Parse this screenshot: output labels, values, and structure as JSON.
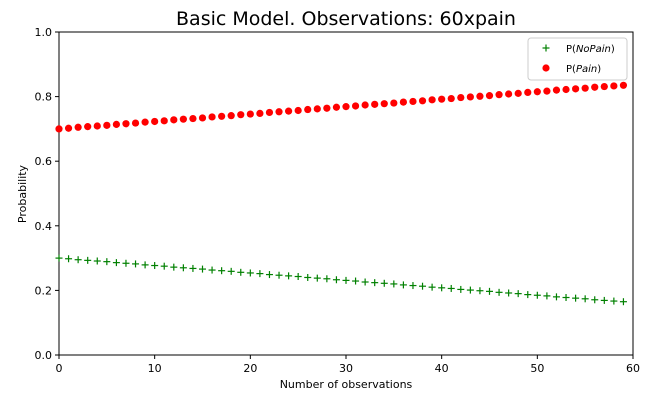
{
  "chart_data": {
    "type": "scatter",
    "title": "Basic Model. Observations: 60xpain",
    "xlabel": "Number of observations",
    "ylabel": "Probability",
    "xlim": [
      0,
      60
    ],
    "ylim": [
      0.0,
      1.0
    ],
    "xticks": [
      "0",
      "10",
      "20",
      "30",
      "40",
      "50",
      "60"
    ],
    "yticks": [
      "0.0",
      "0.2",
      "0.4",
      "0.6",
      "0.8",
      "1.0"
    ],
    "grid": false,
    "legend_position": "top-right",
    "x": [
      0,
      1,
      2,
      3,
      4,
      5,
      6,
      7,
      8,
      9,
      10,
      11,
      12,
      13,
      14,
      15,
      16,
      17,
      18,
      19,
      20,
      21,
      22,
      23,
      24,
      25,
      26,
      27,
      28,
      29,
      30,
      31,
      32,
      33,
      34,
      35,
      36,
      37,
      38,
      39,
      40,
      41,
      42,
      43,
      44,
      45,
      46,
      47,
      48,
      49,
      50,
      51,
      52,
      53,
      54,
      55,
      56,
      57,
      58,
      59
    ],
    "series": [
      {
        "name": "P(NoPain)",
        "label_parts": [
          "P(",
          "NoPain",
          ")"
        ],
        "marker": "plus",
        "color": "#008000",
        "values": [
          0.3,
          0.298,
          0.295,
          0.293,
          0.291,
          0.289,
          0.286,
          0.284,
          0.282,
          0.279,
          0.277,
          0.275,
          0.272,
          0.27,
          0.268,
          0.266,
          0.263,
          0.261,
          0.259,
          0.256,
          0.254,
          0.252,
          0.249,
          0.247,
          0.245,
          0.243,
          0.24,
          0.238,
          0.236,
          0.233,
          0.231,
          0.229,
          0.226,
          0.224,
          0.222,
          0.22,
          0.217,
          0.215,
          0.213,
          0.21,
          0.208,
          0.206,
          0.203,
          0.201,
          0.199,
          0.197,
          0.194,
          0.192,
          0.19,
          0.187,
          0.185,
          0.183,
          0.18,
          0.178,
          0.176,
          0.174,
          0.171,
          0.169,
          0.167,
          0.165
        ]
      },
      {
        "name": "P(Pain)",
        "label_parts": [
          "P(",
          "Pain",
          ")"
        ],
        "marker": "circle",
        "color": "#ff0000",
        "values": [
          0.7,
          0.702,
          0.705,
          0.707,
          0.709,
          0.711,
          0.714,
          0.716,
          0.718,
          0.721,
          0.723,
          0.725,
          0.728,
          0.73,
          0.732,
          0.734,
          0.737,
          0.739,
          0.741,
          0.744,
          0.746,
          0.748,
          0.751,
          0.753,
          0.755,
          0.757,
          0.76,
          0.762,
          0.764,
          0.767,
          0.769,
          0.771,
          0.774,
          0.776,
          0.778,
          0.78,
          0.783,
          0.785,
          0.787,
          0.79,
          0.792,
          0.794,
          0.797,
          0.799,
          0.801,
          0.803,
          0.806,
          0.808,
          0.81,
          0.813,
          0.815,
          0.817,
          0.82,
          0.822,
          0.824,
          0.826,
          0.829,
          0.831,
          0.833,
          0.835
        ]
      }
    ]
  }
}
